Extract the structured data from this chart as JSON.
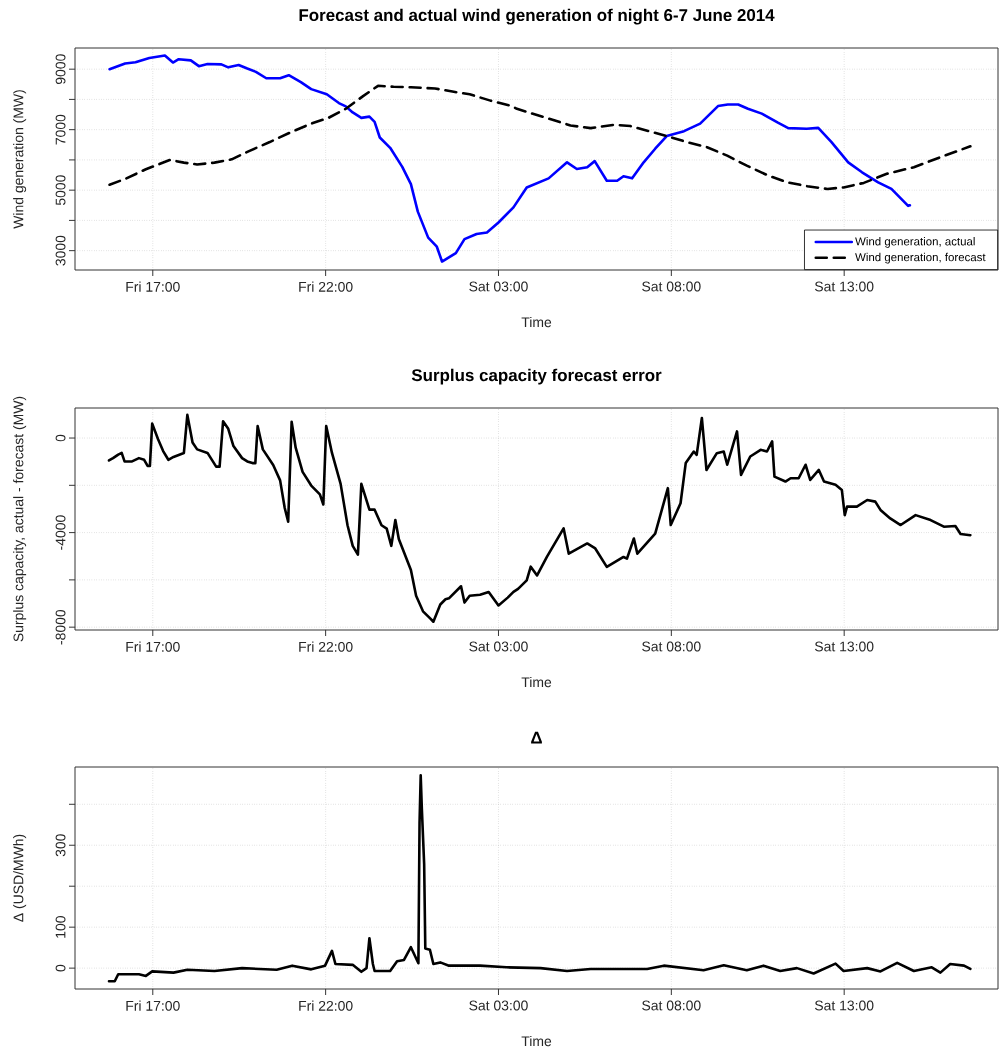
{
  "chart_data": [
    {
      "type": "line",
      "title": "Forecast and actual wind generation of night 6-7 June 2014",
      "xlabel": "Time",
      "ylabel": "Wind generation (MW)",
      "xlim": [
        "2014-06-06T14:45",
        "2014-06-07T17:27"
      ],
      "xticks": [
        {
          "value": "2014-06-06T17:00",
          "label": "Fri 17:00"
        },
        {
          "value": "2014-06-06T22:00",
          "label": "Fri 22:00"
        },
        {
          "value": "2014-06-07T03:00",
          "label": "Sat 03:00"
        },
        {
          "value": "2014-06-07T08:00",
          "label": "Sat 08:00"
        },
        {
          "value": "2014-06-07T13:00",
          "label": "Sat 13:00"
        }
      ],
      "ylim": [
        2360,
        9700
      ],
      "yticks": [
        3000,
        {
          "value": 4000,
          "label": null
        },
        5000,
        {
          "value": 6000,
          "label": null
        },
        7000,
        {
          "value": 8000,
          "label": null
        },
        9000
      ],
      "grid": true,
      "legend": "bottom right",
      "series": [
        {
          "name": "Wind generation, actual",
          "color": "#0000ff",
          "line_style": "solid",
          "x": [
            "2014-06-06T15:45",
            "2014-06-06T16:12",
            "2014-06-06T16:30",
            "2014-06-06T16:54",
            "2014-06-06T17:21",
            "2014-06-06T17:35",
            "2014-06-06T17:45",
            "2014-06-06T18:06",
            "2014-06-06T18:20",
            "2014-06-06T18:35",
            "2014-06-06T18:59",
            "2014-06-06T19:11",
            "2014-06-06T19:29",
            "2014-06-06T19:44",
            "2014-06-06T19:59",
            "2014-06-06T20:17",
            "2014-06-06T20:41",
            "2014-06-06T20:56",
            "2014-06-06T21:17",
            "2014-06-06T21:35",
            "2014-06-06T22:02",
            "2014-06-06T22:23",
            "2014-06-06T22:35",
            "2014-06-06T22:47",
            "2014-06-06T23:02",
            "2014-06-06T23:16",
            "2014-06-06T23:25",
            "2014-06-06T23:34",
            "2014-06-06T23:52",
            "2014-06-07T00:13",
            "2014-06-07T00:28",
            "2014-06-07T00:40",
            "2014-06-07T00:58",
            "2014-06-07T01:13",
            "2014-06-07T01:22",
            "2014-06-07T01:46",
            "2014-06-07T02:01",
            "2014-06-07T02:22",
            "2014-06-07T02:40",
            "2014-06-07T03:00",
            "2014-06-07T03:26",
            "2014-06-07T03:49",
            "2014-06-07T04:27",
            "2014-06-07T04:59",
            "2014-06-07T05:16",
            "2014-06-07T05:34",
            "2014-06-07T05:47",
            "2014-06-07T06:08",
            "2014-06-07T06:26",
            "2014-06-07T06:37",
            "2014-06-07T06:52",
            "2014-06-07T07:12",
            "2014-06-07T07:32",
            "2014-06-07T07:52",
            "2014-06-07T08:22",
            "2014-06-07T08:50",
            "2014-06-07T09:21",
            "2014-06-07T09:38",
            "2014-06-07T09:56",
            "2014-06-07T10:13",
            "2014-06-07T10:37",
            "2014-06-07T11:05",
            "2014-06-07T11:23",
            "2014-06-07T11:55",
            "2014-06-07T12:15",
            "2014-06-07T12:38",
            "2014-06-07T13:07",
            "2014-06-07T13:31",
            "2014-06-07T13:59",
            "2014-06-07T14:22",
            "2014-06-07T14:51",
            "2014-06-07T14:54"
          ],
          "values": [
            9000,
            9190,
            9230,
            9370,
            9450,
            9220,
            9330,
            9290,
            9100,
            9170,
            9160,
            9060,
            9140,
            9020,
            8910,
            8700,
            8700,
            8800,
            8570,
            8340,
            8170,
            7880,
            7770,
            7570,
            7390,
            7430,
            7260,
            6740,
            6400,
            5770,
            5200,
            4290,
            3430,
            3130,
            2640,
            2920,
            3380,
            3550,
            3600,
            3930,
            4430,
            5090,
            5390,
            5920,
            5700,
            5760,
            5960,
            5310,
            5310,
            5460,
            5390,
            5920,
            6370,
            6790,
            6950,
            7200,
            7780,
            7830,
            7830,
            7690,
            7530,
            7230,
            7050,
            7030,
            7060,
            6590,
            5920,
            5590,
            5260,
            5040,
            4480,
            4500
          ]
        },
        {
          "name": "Wind generation, forecast",
          "color": "#000000",
          "line_style": "dashed",
          "x": [
            "2014-06-06T15:45",
            "2014-06-06T16:12",
            "2014-06-06T16:48",
            "2014-06-06T17:30",
            "2014-06-06T17:54",
            "2014-06-06T18:17",
            "2014-06-06T18:47",
            "2014-06-06T19:17",
            "2014-06-06T19:47",
            "2014-06-06T20:23",
            "2014-06-06T20:59",
            "2014-06-06T21:35",
            "2014-06-06T22:05",
            "2014-06-06T22:35",
            "2014-06-06T23:05",
            "2014-06-06T23:31",
            "2014-06-06T23:58",
            "2014-06-07T00:28",
            "2014-06-07T01:10",
            "2014-06-07T01:40",
            "2014-06-07T02:10",
            "2014-06-07T02:46",
            "2014-06-07T03:22",
            "2014-06-07T03:32",
            "2014-06-07T04:18",
            "2014-06-07T05:05",
            "2014-06-07T05:40",
            "2014-06-07T06:20",
            "2014-06-07T06:49",
            "2014-06-07T07:23",
            "2014-06-07T07:52",
            "2014-06-07T08:27",
            "2014-06-07T09:02",
            "2014-06-07T09:37",
            "2014-06-07T10:11",
            "2014-06-07T10:46",
            "2014-06-07T11:21",
            "2014-06-07T11:56",
            "2014-06-07T12:31",
            "2014-06-07T12:59",
            "2014-06-07T13:34",
            "2014-06-07T14:14",
            "2014-06-07T15:01",
            "2014-06-07T15:47",
            "2014-06-07T16:39"
          ],
          "values": [
            5180,
            5370,
            5690,
            6000,
            5910,
            5850,
            5910,
            6020,
            6290,
            6590,
            6910,
            7200,
            7390,
            7690,
            8110,
            8450,
            8420,
            8400,
            8360,
            8260,
            8170,
            7960,
            7790,
            7690,
            7420,
            7140,
            7050,
            7160,
            7120,
            6940,
            6790,
            6590,
            6420,
            6140,
            5810,
            5500,
            5260,
            5130,
            5040,
            5090,
            5240,
            5540,
            5760,
            6090,
            6450
          ]
        }
      ]
    },
    {
      "type": "line",
      "title": "Surplus capacity forecast error",
      "xlabel": "Time",
      "ylabel": "Surplus capacity, actual - forecast (MW)",
      "xlim": [
        "2014-06-06T14:45",
        "2014-06-07T17:27"
      ],
      "xticks": [
        {
          "value": "2014-06-06T17:00",
          "label": "Fri 17:00"
        },
        {
          "value": "2014-06-06T22:00",
          "label": "Fri 22:00"
        },
        {
          "value": "2014-06-07T03:00",
          "label": "Sat 03:00"
        },
        {
          "value": "2014-06-07T08:00",
          "label": "Sat 08:00"
        },
        {
          "value": "2014-06-07T13:00",
          "label": "Sat 13:00"
        }
      ],
      "ylim": [
        -8120,
        1270
      ],
      "yticks": [
        -8000,
        {
          "value": -6000,
          "label": null
        },
        -4000,
        {
          "value": -2000,
          "label": null
        },
        0
      ],
      "grid": true,
      "series": [
        {
          "color": "#000000",
          "line_style": "solid",
          "x": [
            "2014-06-06T15:44",
            "2014-06-06T15:51",
            "2014-06-06T16:00",
            "2014-06-06T16:06",
            "2014-06-06T16:11",
            "2014-06-06T16:24",
            "2014-06-06T16:36",
            "2014-06-06T16:45",
            "2014-06-06T16:51",
            "2014-06-06T16:55",
            "2014-06-06T16:59",
            "2014-06-06T17:09",
            "2014-06-06T17:18",
            "2014-06-06T17:27",
            "2014-06-06T17:36",
            "2014-06-06T17:54",
            "2014-06-06T18:00",
            "2014-06-06T18:09",
            "2014-06-06T18:17",
            "2014-06-06T18:35",
            "2014-06-06T18:50",
            "2014-06-06T18:56",
            "2014-06-06T19:02",
            "2014-06-06T19:11",
            "2014-06-06T19:20",
            "2014-06-06T19:35",
            "2014-06-06T19:44",
            "2014-06-06T19:53",
            "2014-06-06T19:58",
            "2014-06-06T20:02",
            "2014-06-06T20:11",
            "2014-06-06T20:29",
            "2014-06-06T20:41",
            "2014-06-06T20:49",
            "2014-06-06T20:55",
            "2014-06-06T21:01",
            "2014-06-06T21:08",
            "2014-06-06T21:20",
            "2014-06-06T21:35",
            "2014-06-06T21:50",
            "2014-06-06T21:56",
            "2014-06-06T22:01",
            "2014-06-06T22:11",
            "2014-06-06T22:26",
            "2014-06-06T22:38",
            "2014-06-06T22:47",
            "2014-06-06T22:56",
            "2014-06-06T23:02",
            "2014-06-06T23:16",
            "2014-06-06T23:25",
            "2014-06-06T23:37",
            "2014-06-06T23:46",
            "2014-06-06T23:54",
            "2014-06-07T00:01",
            "2014-06-07T00:07",
            "2014-06-07T00:28",
            "2014-06-07T00:37",
            "2014-06-07T00:49",
            "2014-06-07T01:01",
            "2014-06-07T01:07",
            "2014-06-07T01:19",
            "2014-06-07T01:28",
            "2014-06-07T01:34",
            "2014-06-07T01:55",
            "2014-06-07T02:01",
            "2014-06-07T02:10",
            "2014-06-07T02:28",
            "2014-06-07T02:43",
            "2014-06-07T03:00",
            "2014-06-07T03:16",
            "2014-06-07T03:26",
            "2014-06-07T03:34",
            "2014-06-07T03:49",
            "2014-06-07T03:56",
            "2014-06-07T04:07",
            "2014-06-07T04:24",
            "2014-06-07T04:53",
            "2014-06-07T05:02",
            "2014-06-07T05:34",
            "2014-06-07T05:48",
            "2014-06-07T06:08",
            "2014-06-07T06:37",
            "2014-06-07T06:43",
            "2014-06-07T06:55",
            "2014-06-07T07:01",
            "2014-06-07T07:32",
            "2014-06-07T07:54",
            "2014-06-07T07:59",
            "2014-06-07T08:16",
            "2014-06-07T08:25",
            "2014-06-07T08:39",
            "2014-06-07T08:44",
            "2014-06-07T08:53",
            "2014-06-07T09:01",
            "2014-06-07T09:19",
            "2014-06-07T09:31",
            "2014-06-07T09:37",
            "2014-06-07T09:54",
            "2014-06-07T10:01",
            "2014-06-07T10:17",
            "2014-06-07T10:35",
            "2014-06-07T10:46",
            "2014-06-07T10:55",
            "2014-06-07T10:59",
            "2014-06-07T11:18",
            "2014-06-07T11:27",
            "2014-06-07T11:41",
            "2014-06-07T11:53",
            "2014-06-07T12:01",
            "2014-06-07T12:16",
            "2014-06-07T12:25",
            "2014-06-07T12:45",
            "2014-06-07T12:56",
            "2014-06-07T13:01",
            "2014-06-07T13:05",
            "2014-06-07T13:22",
            "2014-06-07T13:40",
            "2014-06-07T13:54",
            "2014-06-07T14:03",
            "2014-06-07T14:20",
            "2014-06-07T14:38",
            "2014-06-07T15:04",
            "2014-06-07T15:30",
            "2014-06-07T15:53",
            "2014-06-07T16:13",
            "2014-06-07T16:22",
            "2014-06-07T16:39"
          ],
          "values": [
            -950,
            -850,
            -700,
            -630,
            -990,
            -990,
            -850,
            -920,
            -1180,
            -1180,
            610,
            -40,
            -550,
            -920,
            -800,
            -630,
            980,
            -190,
            -480,
            -630,
            -1210,
            -1210,
            710,
            390,
            -340,
            -850,
            -990,
            -1060,
            -1060,
            510,
            -480,
            -1140,
            -1790,
            -2960,
            -3540,
            690,
            -410,
            -1430,
            -2010,
            -2380,
            -2810,
            510,
            -630,
            -1940,
            -3690,
            -4560,
            -4930,
            -1940,
            -3030,
            -3030,
            -3690,
            -3830,
            -4560,
            -3470,
            -4270,
            -5580,
            -6670,
            -7330,
            -7620,
            -7770,
            -7040,
            -6820,
            -6780,
            -6270,
            -6960,
            -6670,
            -6630,
            -6510,
            -7080,
            -6750,
            -6510,
            -6380,
            -6020,
            -5440,
            -5810,
            -5030,
            -3820,
            -4890,
            -4460,
            -4670,
            -5450,
            -5030,
            -5100,
            -4250,
            -4890,
            -4040,
            -2120,
            -3680,
            -2760,
            -1060,
            -570,
            -710,
            850,
            -1350,
            -640,
            -570,
            -1130,
            280,
            -1560,
            -780,
            -500,
            -570,
            -140,
            -1630,
            -1840,
            -1700,
            -1700,
            -1130,
            -1770,
            -1350,
            -1840,
            -1980,
            -2200,
            -3260,
            -2900,
            -2900,
            -2620,
            -2690,
            -3040,
            -3400,
            -3680,
            -3260,
            -3470,
            -3750,
            -3720,
            -4060,
            -4110
          ]
        }
      ]
    },
    {
      "type": "line",
      "title": "Δ",
      "xlabel": "Time",
      "ylabel": "Δ (USD/MWh)",
      "xlim": [
        "2014-06-06T14:45",
        "2014-06-07T17:27"
      ],
      "xticks": [
        {
          "value": "2014-06-06T17:00",
          "label": "Fri 17:00"
        },
        {
          "value": "2014-06-06T22:00",
          "label": "Fri 22:00"
        },
        {
          "value": "2014-06-07T03:00",
          "label": "Sat 03:00"
        },
        {
          "value": "2014-06-07T08:00",
          "label": "Sat 08:00"
        },
        {
          "value": "2014-06-07T13:00",
          "label": "Sat 13:00"
        }
      ],
      "ylim": [
        -51,
        491
      ],
      "yticks": [
        0,
        100,
        {
          "value": 200,
          "label": null
        },
        300,
        {
          "value": 400,
          "label": null
        }
      ],
      "grid": true,
      "series": [
        {
          "color": "#000000",
          "line_style": "solid",
          "x": [
            "2014-06-06T15:44",
            "2014-06-06T15:54",
            "2014-06-06T16:00",
            "2014-06-06T16:36",
            "2014-06-06T16:48",
            "2014-06-06T16:59",
            "2014-06-06T17:36",
            "2014-06-06T18:00",
            "2014-06-06T18:47",
            "2014-06-06T19:35",
            "2014-06-06T20:35",
            "2014-06-06T21:02",
            "2014-06-06T21:35",
            "2014-06-06T21:59",
            "2014-06-06T22:11",
            "2014-06-06T22:17",
            "2014-06-06T22:47",
            "2014-06-06T23:02",
            "2014-06-06T23:11",
            "2014-06-06T23:16",
            "2014-06-06T23:22",
            "2014-06-06T23:25",
            "2014-06-06T23:52",
            "2014-06-07T00:04",
            "2014-06-07T00:16",
            "2014-06-07T00:28",
            "2014-06-07T00:41",
            "2014-06-07T00:43",
            "2014-06-07T00:45",
            "2014-06-07T00:47",
            "2014-06-07T00:51",
            "2014-06-07T00:53",
            "2014-06-07T01:01",
            "2014-06-07T01:07",
            "2014-06-07T01:19",
            "2014-06-07T01:34",
            "2014-06-07T02:28",
            "2014-06-07T03:14",
            "2014-06-07T04:13",
            "2014-06-07T04:59",
            "2014-06-07T05:40",
            "2014-06-07T07:18",
            "2014-06-07T07:47",
            "2014-06-07T08:56",
            "2014-06-07T09:31",
            "2014-06-07T10:11",
            "2014-06-07T10:40",
            "2014-06-07T11:09",
            "2014-06-07T11:38",
            "2014-06-07T12:07",
            "2014-06-07T12:45",
            "2014-06-07T12:59",
            "2014-06-07T13:40",
            "2014-06-07T14:03",
            "2014-06-07T14:32",
            "2014-06-07T15:01",
            "2014-06-07T15:32",
            "2014-06-07T15:47",
            "2014-06-07T16:04",
            "2014-06-07T16:28",
            "2014-06-07T16:39"
          ],
          "values": [
            -32,
            -32,
            -15,
            -15,
            -19,
            -8,
            -11,
            -4,
            -7,
            0,
            -4,
            6,
            -3,
            6,
            42,
            10,
            8,
            -9,
            0,
            73,
            10,
            -7,
            -7,
            17,
            20,
            51,
            12,
            355,
            471,
            389,
            254,
            48,
            45,
            10,
            14,
            6,
            6,
            2,
            0,
            -7,
            -2,
            -2,
            6,
            -5,
            7,
            -5,
            6,
            -7,
            0,
            -13,
            11,
            -7,
            0,
            -8,
            13,
            -7,
            2,
            -11,
            10,
            6,
            -2
          ]
        }
      ]
    }
  ]
}
